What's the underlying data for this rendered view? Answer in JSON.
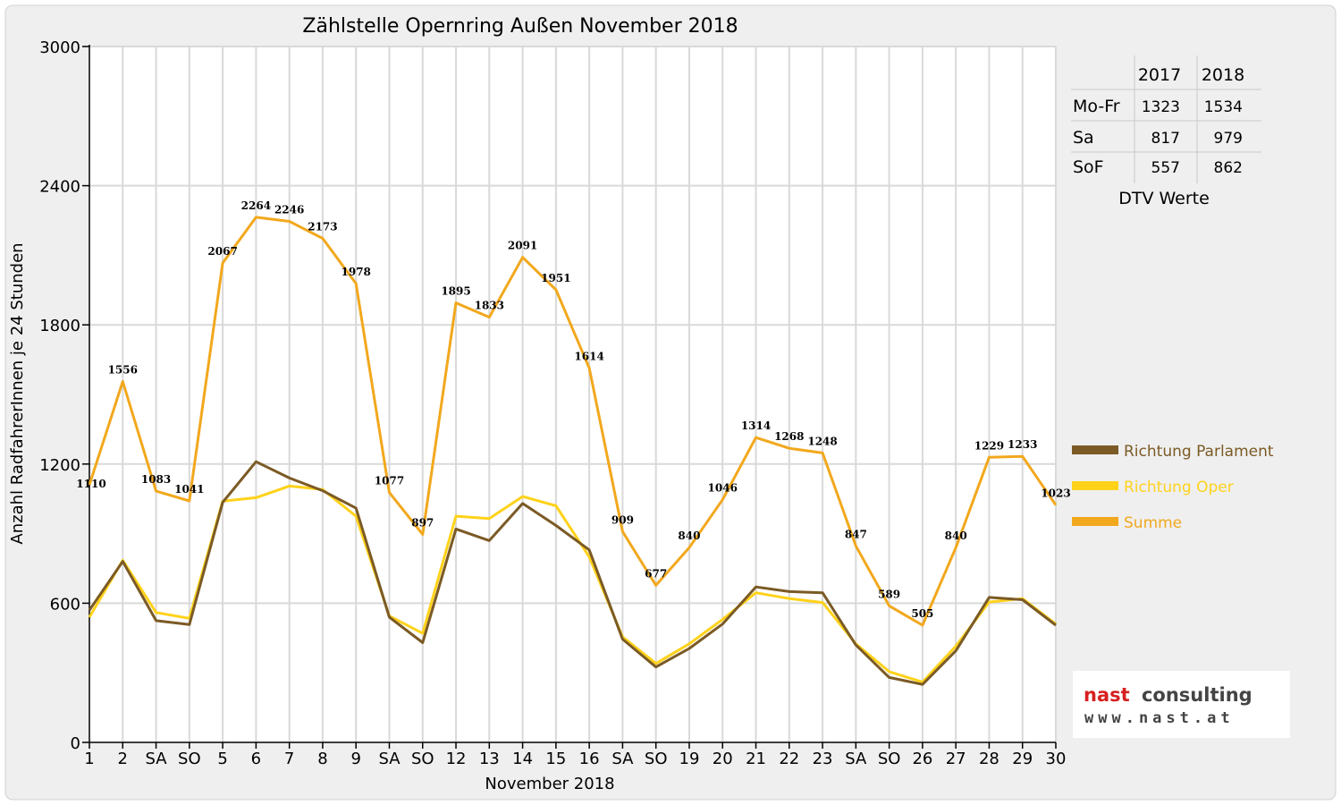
{
  "title": "Zählstelle Opernring Außen November 2018",
  "colors": {
    "background": "#efefef",
    "plot": "#ffffff",
    "grid": "#d9d9d9",
    "parlament": "#7b5a25",
    "oper": "#ffd21a",
    "summe": "#f2a81d",
    "red": "#e00000"
  },
  "chart_data": {
    "type": "line",
    "xlabel": "November 2018",
    "ylabel": "Anzahl RadfahrerInnen je 24 Stunden",
    "ylim": [
      0,
      3000
    ],
    "yticks": [
      0,
      600,
      1200,
      1800,
      2400,
      3000
    ],
    "grid": true,
    "legend_position": "right",
    "categories": [
      "1",
      "2",
      "SA",
      "SO",
      "5",
      "6",
      "7",
      "8",
      "9",
      "SA",
      "SO",
      "12",
      "13",
      "14",
      "15",
      "16",
      "SA",
      "SO",
      "19",
      "20",
      "21",
      "22",
      "23",
      "SA",
      "SO",
      "26",
      "27",
      "28",
      "29",
      "30"
    ],
    "red_categories": [
      0,
      3,
      10,
      17,
      24
    ],
    "series": [
      {
        "name": "Richtung Parlament",
        "color": "#7b5a25",
        "values": [
          570,
          780,
          525,
          508,
          1035,
          1210,
          1140,
          1085,
          1010,
          540,
          430,
          920,
          870,
          1030,
          935,
          830,
          445,
          325,
          405,
          510,
          670,
          650,
          645,
          420,
          280,
          250,
          395,
          625,
          615,
          505
        ]
      },
      {
        "name": "Richtung Oper",
        "color": "#ffd21a",
        "values": [
          540,
          785,
          560,
          535,
          1040,
          1055,
          1105,
          1090,
          975,
          545,
          470,
          975,
          965,
          1060,
          1020,
          800,
          455,
          340,
          425,
          530,
          645,
          620,
          603,
          425,
          305,
          260,
          415,
          605,
          620,
          510
        ]
      },
      {
        "name": "Summe",
        "color": "#f2a81d",
        "values": [
          1110,
          1556,
          1083,
          1041,
          2067,
          2264,
          2246,
          2173,
          1978,
          1077,
          897,
          1895,
          1833,
          2091,
          1951,
          1614,
          909,
          677,
          840,
          1046,
          1314,
          1268,
          1248,
          847,
          589,
          505,
          840,
          1229,
          1233,
          1023
        ]
      }
    ],
    "data_labels": [
      "1110",
      "1556",
      "1083",
      "1041",
      "2067",
      "2264",
      "2246",
      "2173",
      "1978",
      "1077",
      "897",
      "1895",
      "1833",
      "2091",
      "1951",
      "1614",
      "909",
      "677",
      "840",
      "1046",
      "1314",
      "1268",
      "1248",
      "847",
      "589",
      "505",
      "840",
      "1229",
      "1233",
      "1023"
    ]
  },
  "dtv_table": {
    "header": [
      "",
      "2017",
      "2018"
    ],
    "rows": [
      [
        "Mo-Fr",
        "1323",
        "1534"
      ],
      [
        "Sa",
        "817",
        "979"
      ],
      [
        "SoF",
        "557",
        "862"
      ]
    ],
    "caption": "DTV Werte"
  },
  "logo": {
    "brand_part1": "nast",
    "brand_part2": "consulting",
    "url": "www.nast.at"
  }
}
